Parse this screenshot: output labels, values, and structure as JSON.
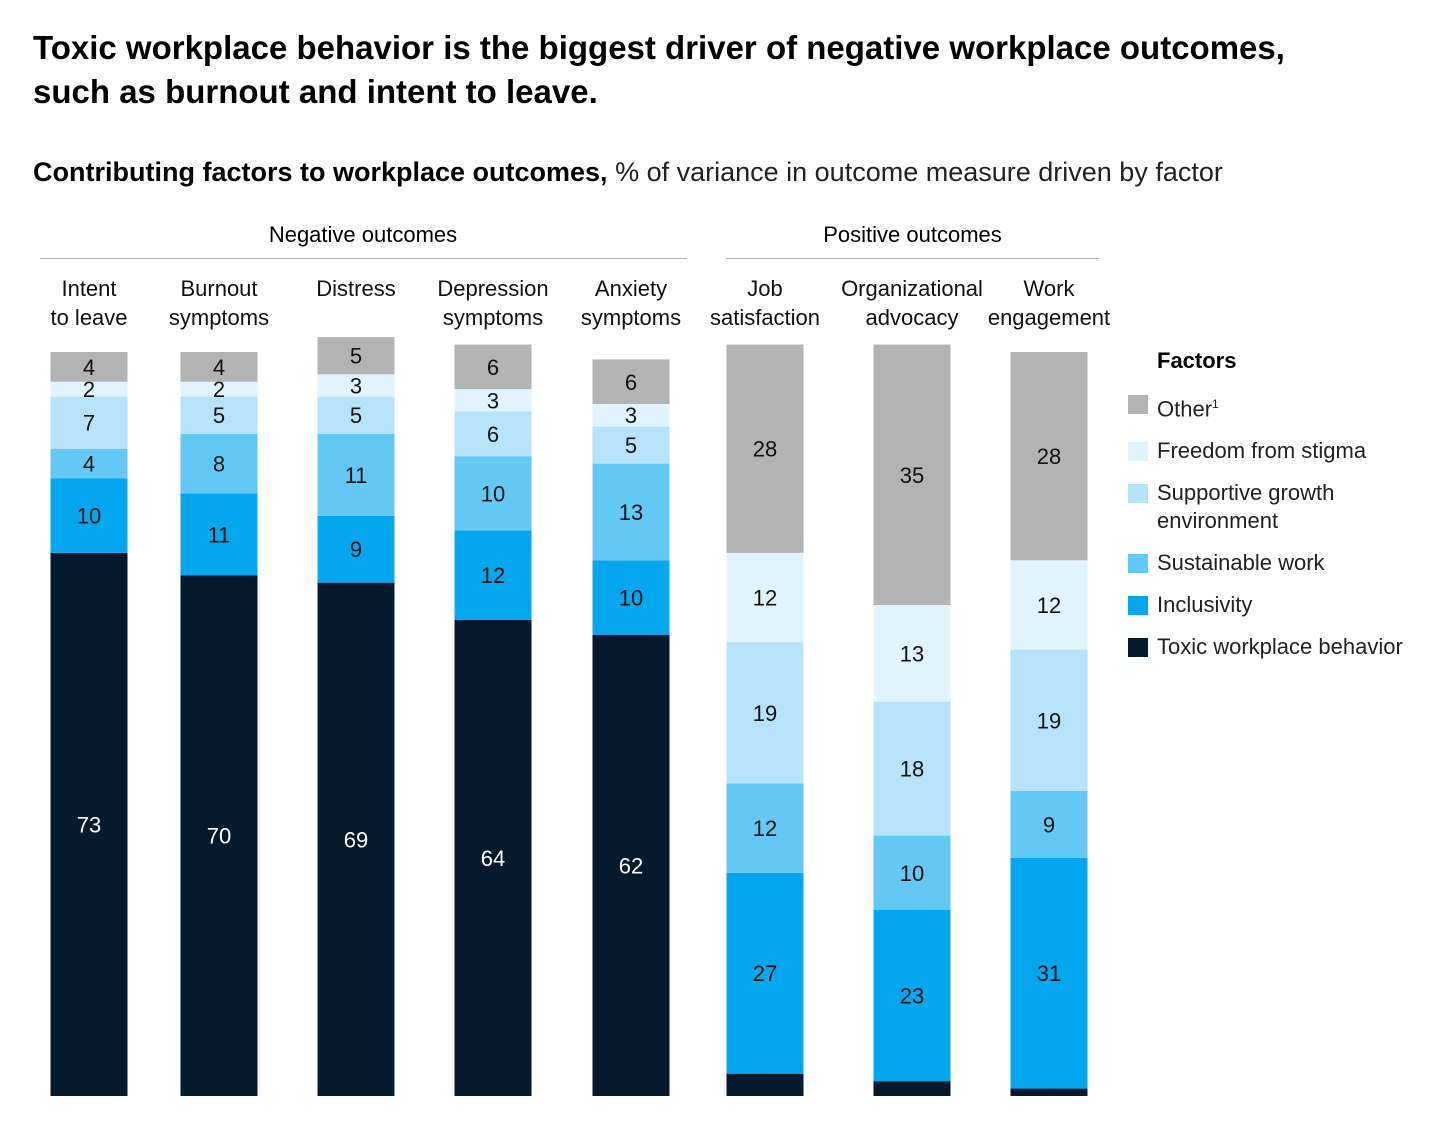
{
  "title": "Toxic workplace behavior is the biggest driver of negative workplace outcomes, such as burnout and intent to leave.",
  "subtitle_bold": "Contributing factors to workplace outcomes,",
  "subtitle_rest": " % of variance in outcome measure driven by factor",
  "groups": {
    "negative": "Negative outcomes",
    "positive": "Positive outcomes"
  },
  "legend": {
    "title": "Factors",
    "items": [
      {
        "label": "Other",
        "sup": "1",
        "color": "#b3b3b3"
      },
      {
        "label": "Freedom from stigma",
        "sup": "",
        "color": "#e1f3fd"
      },
      {
        "label": "Supportive growth environment",
        "sup": "",
        "color": "#b6e3f9"
      },
      {
        "label": "Sustainable work",
        "sup": "",
        "color": "#63c8f4"
      },
      {
        "label": "Inclusivity",
        "sup": "",
        "color": "#04a7ee"
      },
      {
        "label": "Toxic workplace behavior",
        "sup": "",
        "color": "#061a2d"
      }
    ]
  },
  "chart_data": {
    "type": "bar",
    "stacked": true,
    "categories": [
      "Intent\nto leave",
      "Burnout\nsymptoms",
      "Distress",
      "Depression\nsymptoms",
      "Anxiety\nsymptoms",
      "Job\nsatisfaction",
      "Organizational\nadvocacy",
      "Work\nengagement"
    ],
    "category_groups": [
      "Negative outcomes",
      "Negative outcomes",
      "Negative outcomes",
      "Negative outcomes",
      "Negative outcomes",
      "Positive outcomes",
      "Positive outcomes",
      "Positive outcomes"
    ],
    "series": [
      {
        "name": "Toxic workplace behavior",
        "color": "#061a2d",
        "values": [
          73,
          70,
          69,
          64,
          62,
          3,
          2,
          1
        ]
      },
      {
        "name": "Inclusivity",
        "color": "#04a7ee",
        "values": [
          10,
          11,
          9,
          12,
          10,
          27,
          23,
          31
        ]
      },
      {
        "name": "Sustainable work",
        "color": "#63c8f4",
        "values": [
          4,
          8,
          11,
          10,
          13,
          12,
          10,
          9
        ]
      },
      {
        "name": "Supportive growth environment",
        "color": "#b6e3f9",
        "values": [
          7,
          5,
          5,
          6,
          5,
          19,
          18,
          19
        ]
      },
      {
        "name": "Freedom from stigma",
        "color": "#e1f3fd",
        "values": [
          2,
          2,
          3,
          3,
          3,
          12,
          13,
          12
        ]
      },
      {
        "name": "Other",
        "color": "#b3b3b3",
        "values": [
          4,
          4,
          5,
          6,
          6,
          28,
          35,
          28
        ]
      }
    ],
    "ylim": [
      0,
      100
    ],
    "xlabel": "",
    "ylabel": "",
    "grid": false,
    "legend_position": "right"
  }
}
